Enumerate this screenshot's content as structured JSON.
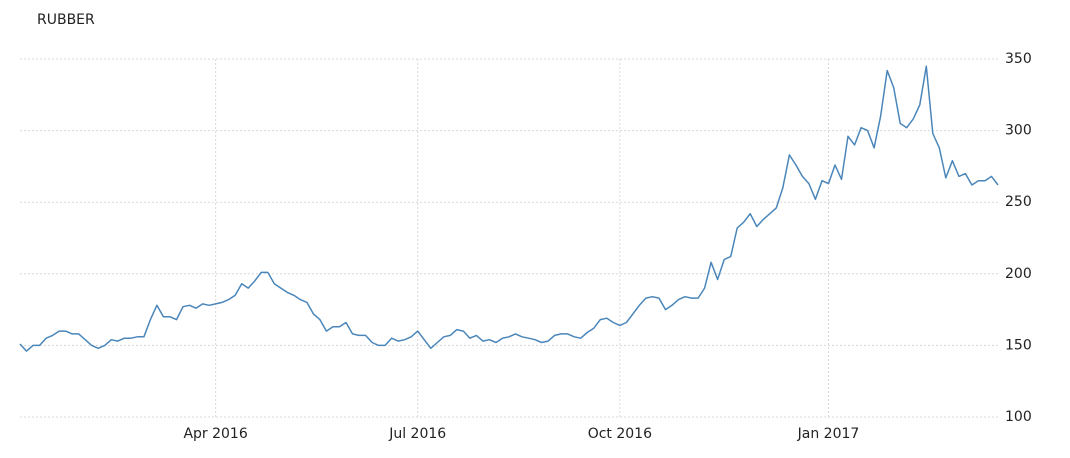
{
  "chart_data": {
    "type": "line",
    "title": "RUBBER",
    "categories": [
      null,
      null,
      null,
      null,
      null,
      null,
      null,
      null,
      null,
      null,
      null,
      null,
      null,
      null,
      null,
      null,
      null,
      null,
      null,
      null,
      null,
      null,
      null,
      null,
      null,
      null,
      null,
      null,
      null,
      null,
      "Apr 2016",
      null,
      null,
      null,
      null,
      null,
      null,
      null,
      null,
      null,
      null,
      null,
      null,
      null,
      null,
      null,
      null,
      null,
      null,
      null,
      null,
      null,
      null,
      null,
      null,
      null,
      null,
      null,
      null,
      null,
      null,
      "Jul 2016",
      null,
      null,
      null,
      null,
      null,
      null,
      null,
      null,
      null,
      null,
      null,
      null,
      null,
      null,
      null,
      null,
      null,
      null,
      null,
      null,
      null,
      null,
      null,
      null,
      null,
      null,
      null,
      null,
      null,
      null,
      "Oct 2016",
      null,
      null,
      null,
      null,
      null,
      null,
      null,
      null,
      null,
      null,
      null,
      null,
      null,
      null,
      null,
      null,
      null,
      null,
      null,
      null,
      null,
      null,
      null,
      null,
      null,
      null,
      null,
      null,
      null,
      null,
      null,
      "Jan 2017",
      null,
      null,
      null,
      null,
      null,
      null,
      null,
      null,
      null,
      null,
      null,
      null,
      null,
      null,
      null,
      null,
      null,
      null,
      null,
      null,
      null,
      null,
      null,
      null,
      null,
      null
    ],
    "values": [
      151,
      146,
      150,
      150,
      155,
      157,
      160,
      160,
      158,
      158,
      154,
      150,
      148,
      150,
      154,
      153,
      155,
      155,
      156,
      156,
      168,
      178,
      170,
      170,
      168,
      177,
      178,
      176,
      179,
      178,
      179,
      180,
      182,
      185,
      193,
      190,
      195,
      201,
      201,
      193,
      190,
      187,
      185,
      182,
      180,
      172,
      168,
      160,
      163,
      163,
      166,
      158,
      157,
      157,
      152,
      150,
      150,
      155,
      153,
      154,
      156,
      160,
      154,
      148,
      152,
      156,
      157,
      161,
      160,
      155,
      157,
      153,
      154,
      152,
      155,
      156,
      158,
      156,
      155,
      154,
      152,
      153,
      157,
      158,
      158,
      156,
      155,
      159,
      162,
      168,
      169,
      166,
      164,
      166,
      172,
      178,
      183,
      184,
      183,
      175,
      178,
      182,
      184,
      183,
      183,
      190,
      208,
      196,
      210,
      212,
      232,
      236,
      242,
      233,
      238,
      242,
      246,
      260,
      283,
      276,
      268,
      263,
      252,
      265,
      263,
      276,
      266,
      296,
      290,
      302,
      300,
      288,
      310,
      342,
      330,
      305,
      302,
      308,
      318,
      345,
      298,
      288,
      267,
      279,
      268,
      270,
      262,
      265,
      265,
      268,
      262
    ],
    "color": "#4a86ba",
    "ylim": [
      100,
      350
    ],
    "yticks": [
      100,
      150,
      200,
      250,
      300,
      350
    ],
    "grid": true
  }
}
